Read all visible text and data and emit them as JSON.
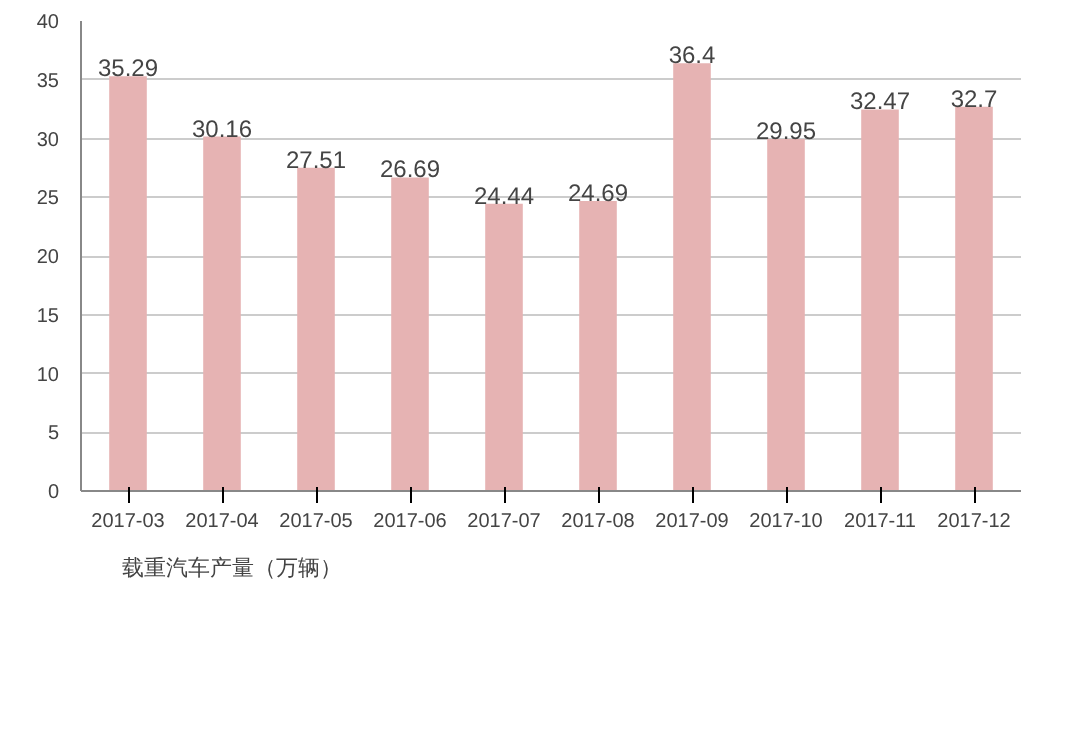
{
  "chart_data": {
    "type": "bar",
    "categories": [
      "2017-03",
      "2017-04",
      "2017-05",
      "2017-06",
      "2017-07",
      "2017-08",
      "2017-09",
      "2017-10",
      "2017-11",
      "2017-12"
    ],
    "series": [
      {
        "name": "载重汽车产量（万辆）",
        "color": "#e6b3b3",
        "values": [
          35.29,
          30.16,
          27.51,
          26.69,
          24.44,
          24.69,
          36.4,
          29.95,
          32.47,
          32.7
        ]
      }
    ],
    "ylim": [
      0,
      40
    ],
    "yticks": [
      0,
      5,
      10,
      15,
      20,
      25,
      30,
      35,
      40
    ],
    "grid": "y",
    "legend": "bottom",
    "data_labels": true
  }
}
